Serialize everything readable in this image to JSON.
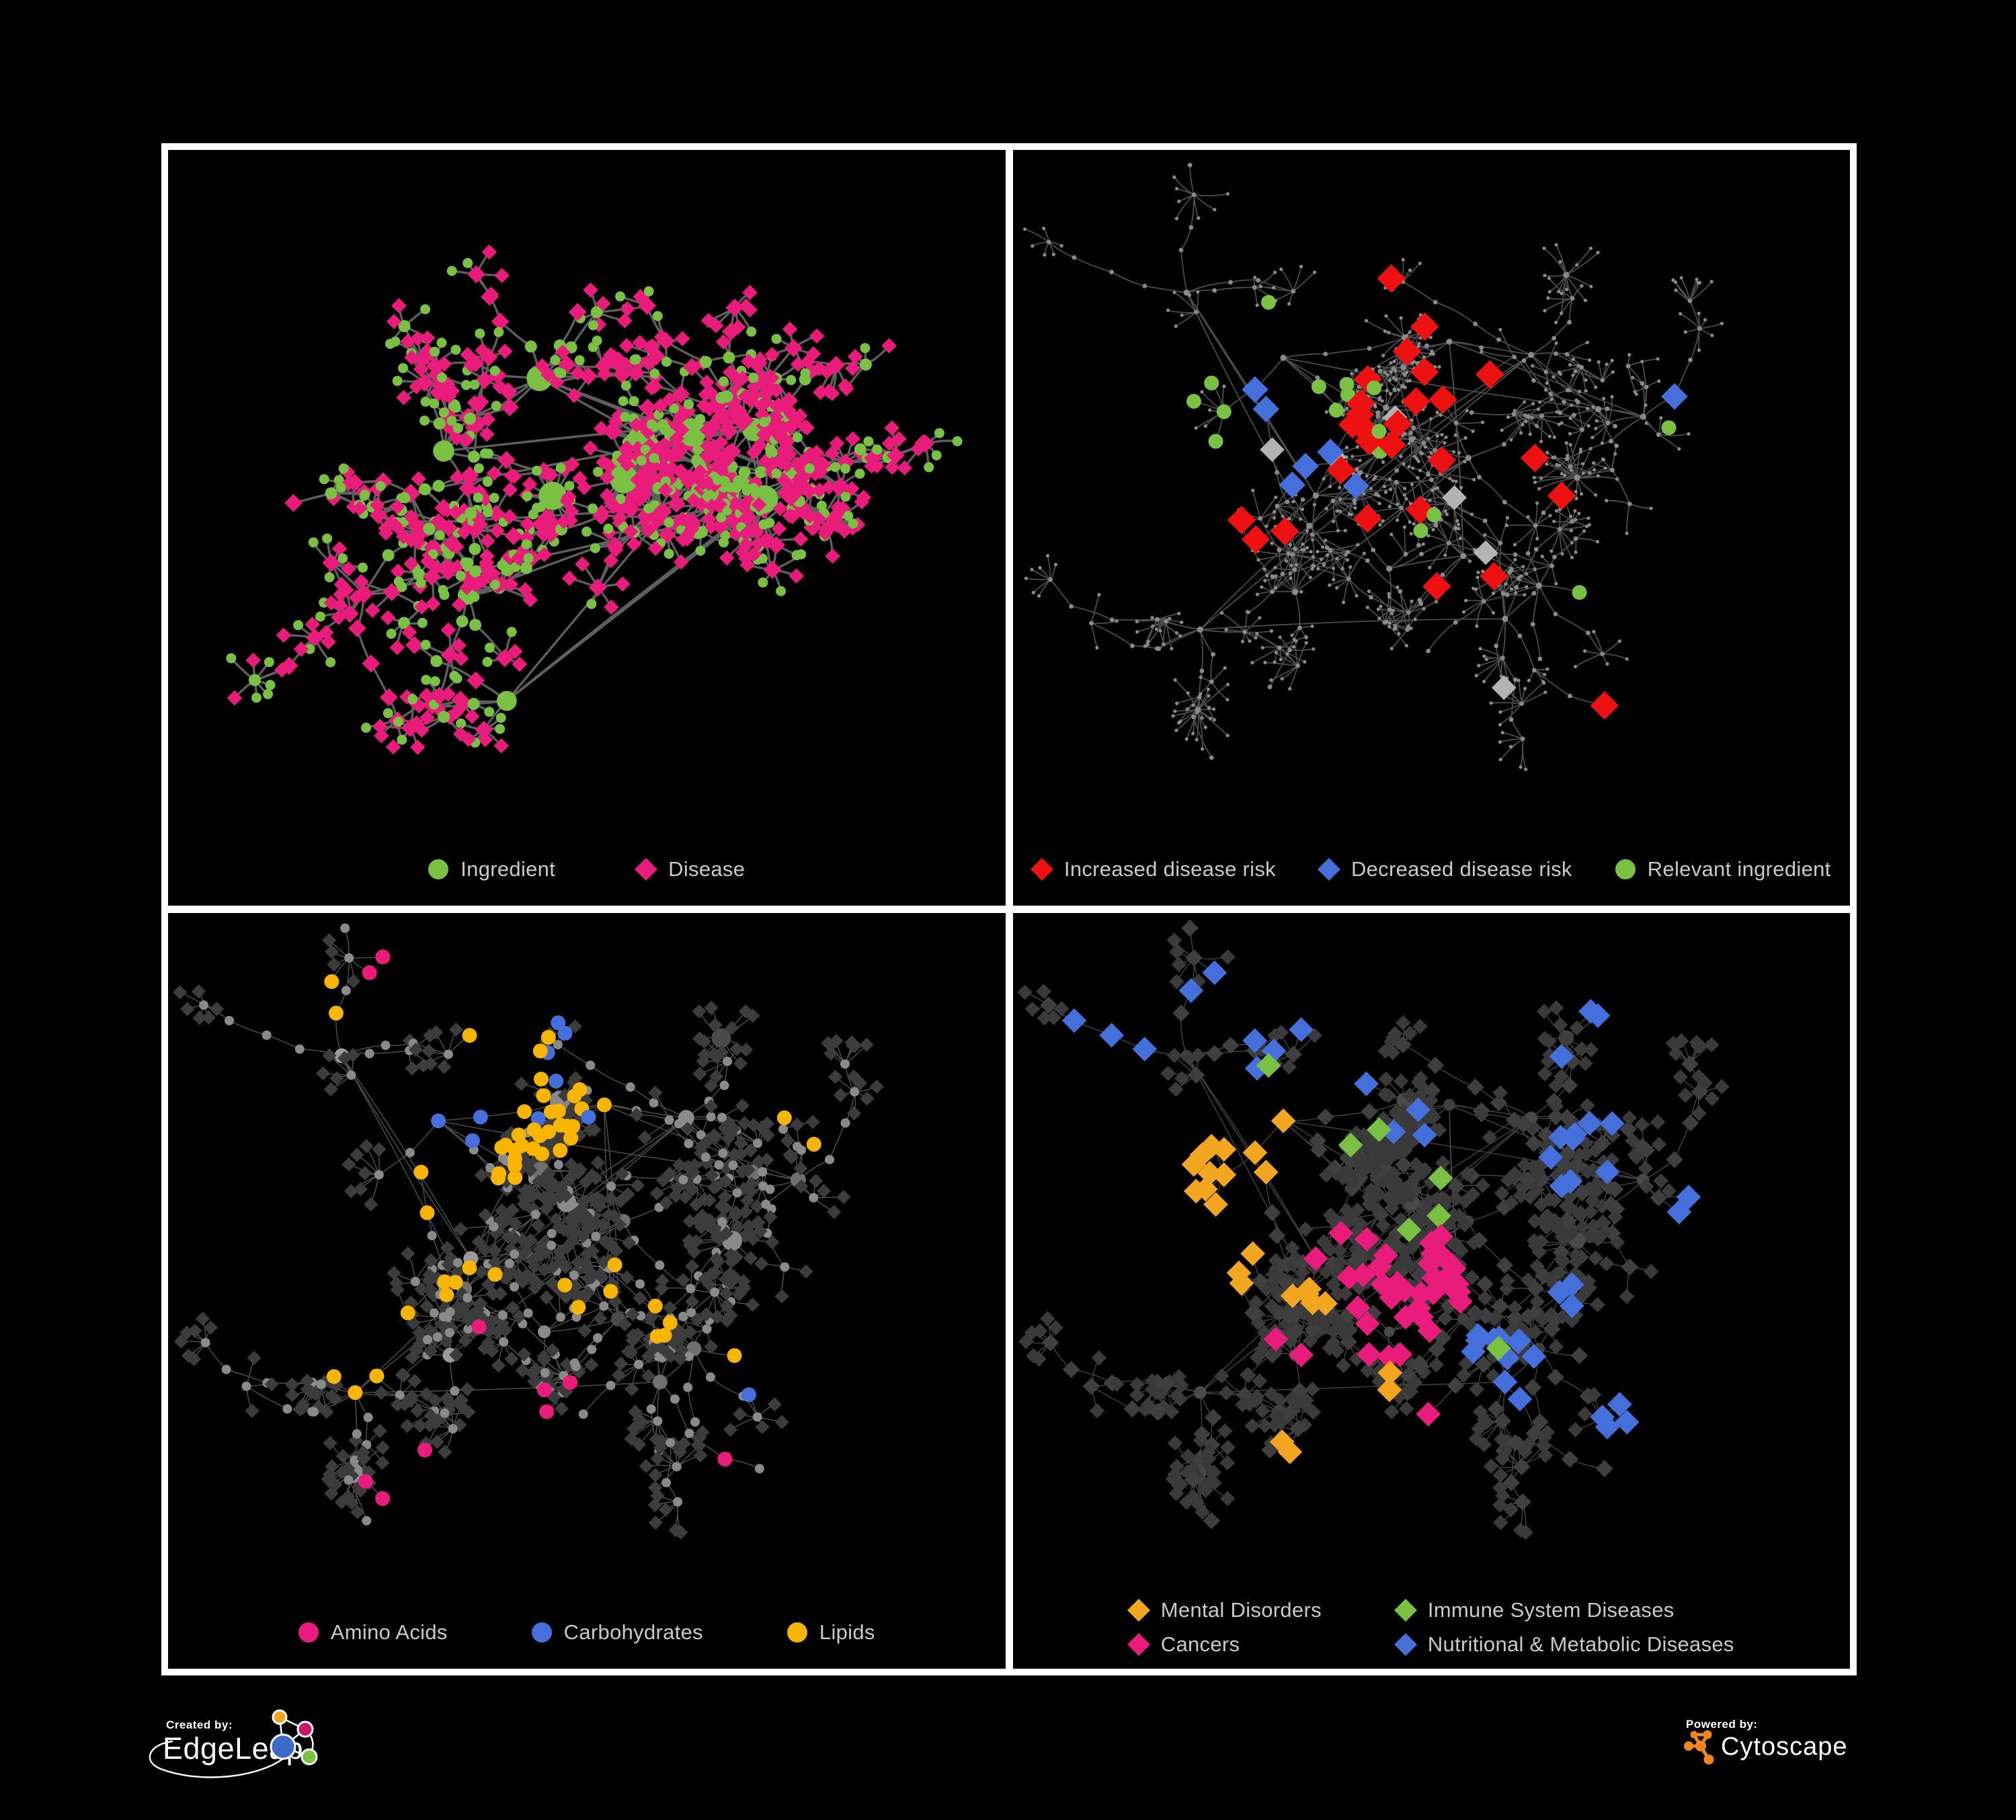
{
  "palette": {
    "green": "#7AC143",
    "magenta": "#E91C7C",
    "red": "#EE1111",
    "blue": "#4570DB",
    "yellow": "#F7B500",
    "orange": "#F2A51F",
    "silver": "#B3B3B3",
    "frame": "#FFFFFF",
    "legend_text": "#C9C9C9",
    "cytoscape_orange": "#F0861C"
  },
  "footer": {
    "created_by_label": "Created by:",
    "created_by_brand": "EdgeLeap",
    "powered_by_label": "Powered by:",
    "powered_by_brand": "Cytoscape"
  },
  "chart_data": {
    "type": "network",
    "description": "Four styled views of an ingredient-disease association network on black panels",
    "layouts": {
      "dense": {
        "seed": 41,
        "clusters": 13,
        "extraLinks": 7,
        "branchMin": 4,
        "branchMax": 8,
        "chainMax": 4,
        "stepMin": 0.03,
        "stepMax": 0.06,
        "leafMid": 0.38,
        "leafEnd": 0.85,
        "leafMin": 3,
        "leafMax": 8,
        "mega": 8,
        "megaLeafMin": 13,
        "megaLeafMax": 26,
        "centerPull": 0.3
      },
      "sparse": {
        "seed": 17,
        "clusters": 15,
        "extraLinks": 5,
        "branchMin": 3,
        "branchMax": 7,
        "chainMax": 4,
        "stepMin": 0.027,
        "stepMax": 0.058,
        "leafMid": 0.3,
        "leafEnd": 0.8,
        "leafMin": 3,
        "leafMax": 9,
        "mega": 7,
        "megaLeafMin": 12,
        "megaLeafMax": 24,
        "centerPull": 0.22
      }
    },
    "panels": [
      {
        "id": "ingredient-disease",
        "layout": "dense",
        "styleSeed": 7,
        "legend": {
          "layout": "row",
          "items": [
            {
              "shape": "circle",
              "color": "#7AC143",
              "label": "Ingredient"
            },
            {
              "shape": "diamond",
              "color": "#E91C7C",
              "label": "Disease"
            }
          ]
        },
        "style": {
          "edge": {
            "color": "#6E6E6E",
            "width": 3.4,
            "opacity": 0.85
          },
          "base": {
            "mode": "twotone",
            "probA": 0.35,
            "A": {
              "shape": "circle",
              "color": "#7AC143",
              "leaf": 7.5,
              "chain": 9,
              "hubBase": 9,
              "hubK": 0.85,
              "hubMax": 21
            },
            "B": {
              "shape": "diamond",
              "color": "#E91C7C",
              "leaf": 8,
              "chain": 9.5,
              "hubBase": 8,
              "hubK": 0.4,
              "hubMax": 15
            }
          }
        },
        "highlights": []
      },
      {
        "id": "disease-risk",
        "layout": "sparse",
        "styleSeed": 21,
        "legend": {
          "layout": "row",
          "items": [
            {
              "shape": "diamond",
              "color": "#EE1111",
              "label": "Increased disease risk"
            },
            {
              "shape": "diamond",
              "color": "#4570DB",
              "label": "Decreased disease risk"
            },
            {
              "shape": "circle",
              "color": "#7AC143",
              "label": "Relevant ingredient"
            }
          ]
        },
        "style": {
          "edge": {
            "color": "#6B6B6B",
            "width": 1.8,
            "opacity": 0.7
          },
          "base": {
            "mode": "dots",
            "color": "#8A8A8A",
            "rLeaf": 2.6,
            "rChain": 3.4,
            "rHub": 4.6
          }
        },
        "highlights": [
          {
            "shape": "diamond",
            "color": "#EE1111",
            "size": 15,
            "regions": [
              [
                0.37,
                0.3,
                0.14,
                9
              ],
              [
                0.46,
                0.4,
                0.12,
                7
              ],
              [
                0.31,
                0.45,
                0.07,
                3
              ],
              [
                0.56,
                0.33,
                0.06,
                2
              ],
              [
                0.62,
                0.45,
                0.05,
                2
              ],
              [
                0.55,
                0.55,
                0.06,
                2
              ],
              [
                0.74,
                0.78,
                0.08,
                2
              ],
              [
                0.47,
                0.21,
                0.05,
                2
              ]
            ]
          },
          {
            "shape": "diamond",
            "color": "#4570DB",
            "size": 14,
            "regions": [
              [
                0.345,
                0.4,
                0.05,
                3
              ],
              [
                0.3,
                0.33,
                0.04,
                2
              ],
              [
                0.815,
                0.335,
                0.035,
                2
              ],
              [
                0.38,
                0.47,
                0.04,
                1
              ]
            ]
          },
          {
            "shape": "circle",
            "color": "#7AC143",
            "size": 11,
            "regions": [
              [
                0.3,
                0.3,
                0.1,
                6
              ],
              [
                0.4,
                0.38,
                0.08,
                4
              ],
              [
                0.22,
                0.36,
                0.05,
                2
              ],
              [
                0.52,
                0.48,
                0.05,
                2
              ],
              [
                0.655,
                0.6,
                0.04,
                1
              ],
              [
                0.785,
                0.355,
                0.03,
                1
              ],
              [
                0.1,
                0.305,
                0.03,
                1
              ]
            ]
          },
          {
            "shape": "diamond",
            "color": "#B3B3B3",
            "size": 13,
            "regions": [
              [
                0.42,
                0.35,
                0.1,
                3
              ],
              [
                0.5,
                0.52,
                0.07,
                2
              ],
              [
                0.63,
                0.7,
                0.05,
                1
              ],
              [
                0.34,
                0.37,
                0.05,
                1
              ]
            ]
          }
        ]
      },
      {
        "id": "metabolite-classes",
        "layout": "sparse",
        "styleSeed": 33,
        "legend": {
          "layout": "row",
          "items": [
            {
              "shape": "circle",
              "color": "#E91C7C",
              "label": "Amino Acids"
            },
            {
              "shape": "circle",
              "color": "#4570DB",
              "label": "Carbohydrates"
            },
            {
              "shape": "circle",
              "color": "#F7B500",
              "label": "Lipids"
            }
          ]
        },
        "style": {
          "edge": {
            "color": "#989898",
            "width": 1.5,
            "opacity": 0.5
          },
          "base": {
            "mode": "hubleaf",
            "hubColors": [
              "#9A9A9A",
              "#8A8A8A",
              "#6F6F6F",
              "#4A4A4A"
            ],
            "hubBase": 7,
            "hubK": 0.5,
            "hubMax": 15,
            "chain": {
              "shape": "circle",
              "color": "#8A8A8A",
              "size": 7
            },
            "leaf": {
              "shape": "diamond",
              "color": "#3C3C3C",
              "size": 7.5
            }
          }
        },
        "highlights": [
          {
            "shape": "circle",
            "color": "#F7B500",
            "size": 11,
            "regions": [
              [
                0.44,
                0.22,
                0.1,
                24
              ],
              [
                0.36,
                0.31,
                0.07,
                9
              ],
              [
                0.3,
                0.44,
                0.1,
                7
              ],
              [
                0.52,
                0.5,
                0.09,
                5
              ],
              [
                0.63,
                0.6,
                0.07,
                4
              ],
              [
                0.24,
                0.6,
                0.05,
                3
              ],
              [
                0.46,
                0.79,
                0.04,
                2
              ],
              [
                0.76,
                0.3,
                0.05,
                2
              ],
              [
                0.22,
                0.12,
                0.04,
                2
              ],
              [
                0.57,
                0.06,
                0.03,
                1
              ],
              [
                0.88,
                0.52,
                0.03,
                1
              ]
            ]
          },
          {
            "shape": "circle",
            "color": "#E91C7C",
            "size": 11,
            "regions": [
              [
                0.13,
                0.46,
                0.05,
                2
              ],
              [
                0.3,
                0.76,
                0.07,
                3
              ],
              [
                0.49,
                0.67,
                0.06,
                3
              ],
              [
                0.55,
                0.88,
                0.05,
                2
              ],
              [
                0.67,
                0.77,
                0.05,
                2
              ],
              [
                0.25,
                0.09,
                0.04,
                2
              ],
              [
                0.92,
                0.35,
                0.04,
                2
              ],
              [
                0.1,
                0.33,
                0.03,
                1
              ],
              [
                0.4,
                0.55,
                0.04,
                1
              ]
            ]
          },
          {
            "shape": "circle",
            "color": "#4570DB",
            "size": 11,
            "regions": [
              [
                0.43,
                0.19,
                0.06,
                4
              ],
              [
                0.37,
                0.26,
                0.05,
                3
              ],
              [
                0.04,
                0.33,
                0.03,
                1
              ],
              [
                0.7,
                0.61,
                0.03,
                1
              ],
              [
                0.48,
                0.28,
                0.04,
                2
              ]
            ]
          }
        ]
      },
      {
        "id": "disease-classes",
        "layout": "sparse",
        "styleSeed": 55,
        "legend": {
          "layout": "grid",
          "items": [
            {
              "shape": "diamond",
              "color": "#F2A51F",
              "label": "Mental Disorders"
            },
            {
              "shape": "diamond",
              "color": "#7AC143",
              "label": "Immune System Diseases"
            },
            {
              "shape": "diamond",
              "color": "#E91C7C",
              "label": "Cancers"
            },
            {
              "shape": "diamond",
              "color": "#4570DB",
              "label": "Nutritional & Metabolic Diseases"
            }
          ]
        },
        "style": {
          "edge": {
            "color": "#949494",
            "width": 1.4,
            "opacity": 0.45
          },
          "base": {
            "mode": "hubleaf",
            "hubColors": [
              "#4A4A4A",
              "#3F3F3F"
            ],
            "hubBase": 6,
            "hubK": 0.35,
            "hubMax": 12,
            "chain": {
              "shape": "diamond",
              "color": "#3F3F3F",
              "size": 9
            },
            "leaf": {
              "shape": "diamond",
              "color": "#3A3A3A",
              "size": 8
            }
          }
        },
        "highlights": [
          {
            "shape": "diamond",
            "color": "#F2A51F",
            "size": 13,
            "regions": [
              [
                0.21,
                0.42,
                0.1,
                40
              ],
              [
                0.28,
                0.33,
                0.07,
                12
              ],
              [
                0.14,
                0.53,
                0.06,
                8
              ],
              [
                0.33,
                0.5,
                0.05,
                5
              ],
              [
                0.36,
                0.1,
                0.05,
                4
              ],
              [
                0.6,
                0.07,
                0.04,
                3
              ],
              [
                0.45,
                0.63,
                0.04,
                2
              ],
              [
                0.3,
                0.73,
                0.04,
                2
              ],
              [
                0.62,
                0.87,
                0.03,
                1
              ],
              [
                0.38,
                0.87,
                0.03,
                1
              ],
              [
                0.12,
                0.3,
                0.04,
                2
              ]
            ]
          },
          {
            "shape": "diamond",
            "color": "#E91C7C",
            "size": 13,
            "regions": [
              [
                0.47,
                0.52,
                0.08,
                22
              ],
              [
                0.55,
                0.45,
                0.06,
                9
              ],
              [
                0.41,
                0.45,
                0.05,
                5
              ],
              [
                0.9,
                0.22,
                0.05,
                5
              ],
              [
                0.13,
                0.75,
                0.04,
                2
              ],
              [
                0.33,
                0.58,
                0.04,
                2
              ],
              [
                0.6,
                0.93,
                0.03,
                1
              ],
              [
                0.5,
                0.7,
                0.04,
                2
              ]
            ]
          },
          {
            "shape": "diamond",
            "color": "#4570DB",
            "size": 13,
            "regions": [
              [
                0.57,
                0.6,
                0.07,
                11
              ],
              [
                0.68,
                0.28,
                0.1,
                10
              ],
              [
                0.85,
                0.45,
                0.09,
                9
              ],
              [
                0.76,
                0.66,
                0.07,
                8
              ],
              [
                0.3,
                0.12,
                0.09,
                6
              ],
              [
                0.12,
                0.17,
                0.06,
                3
              ],
              [
                0.5,
                0.3,
                0.06,
                3
              ],
              [
                0.9,
                0.09,
                0.05,
                3
              ],
              [
                0.45,
                0.9,
                0.05,
                3
              ],
              [
                0.2,
                0.9,
                0.04,
                2
              ],
              [
                0.64,
                0.5,
                0.05,
                3
              ],
              [
                0.93,
                0.6,
                0.04,
                2
              ],
              [
                0.55,
                0.17,
                0.04,
                2
              ],
              [
                0.85,
                0.85,
                0.04,
                2
              ],
              [
                0.73,
                0.12,
                0.05,
                3
              ],
              [
                0.4,
                0.2,
                0.04,
                2
              ],
              [
                0.88,
                0.3,
                0.04,
                3
              ],
              [
                0.08,
                0.47,
                0.03,
                1
              ]
            ]
          },
          {
            "shape": "diamond",
            "color": "#7AC143",
            "size": 13,
            "regions": [
              [
                0.5,
                0.42,
                0.05,
                2
              ],
              [
                0.43,
                0.31,
                0.04,
                2
              ],
              [
                0.56,
                0.56,
                0.03,
                1
              ],
              [
                0.88,
                0.55,
                0.03,
                1
              ],
              [
                0.31,
                0.2,
                0.03,
                1
              ],
              [
                0.43,
                0.96,
                0.02,
                1
              ],
              [
                0.53,
                0.37,
                0.03,
                1
              ]
            ]
          }
        ]
      }
    ]
  }
}
